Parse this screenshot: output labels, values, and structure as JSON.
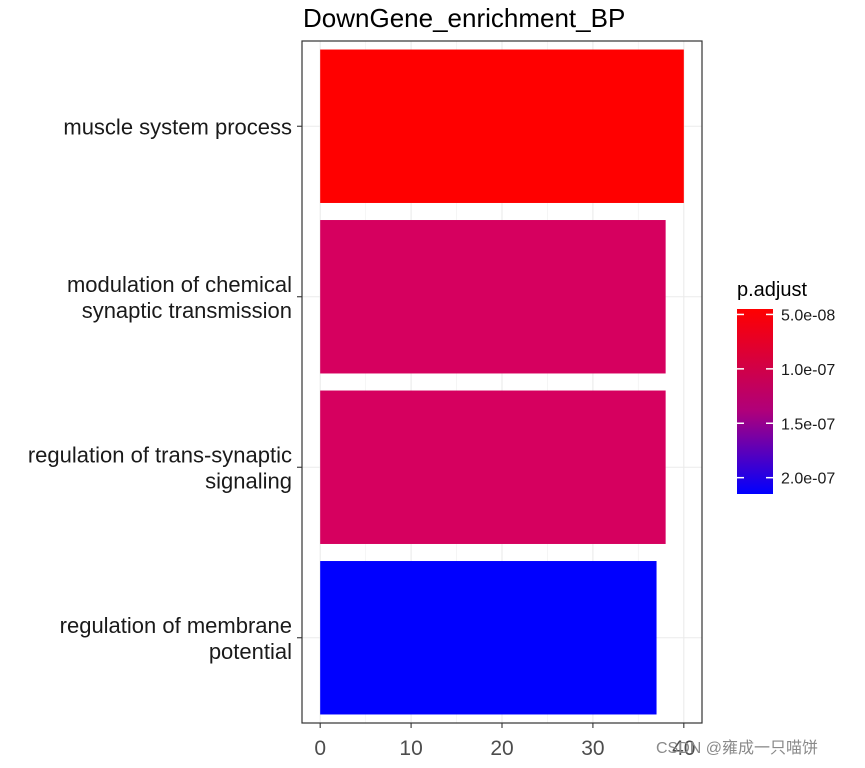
{
  "chart_data": {
    "type": "bar",
    "orientation": "horizontal",
    "title": "DownGene_enrichment_BP",
    "categories": [
      [
        "muscle system process"
      ],
      [
        "modulation of chemical",
        "synaptic transmission"
      ],
      [
        "regulation of trans-synaptic",
        "signaling"
      ],
      [
        "regulation of membrane",
        "potential"
      ]
    ],
    "values": [
      40,
      38,
      38,
      37
    ],
    "p_adjust": [
      5e-08,
      9e-08,
      9e-08,
      2.05e-07
    ],
    "bar_colors": [
      "#FF0000",
      "#D6005F",
      "#D6005F",
      "#0000FF"
    ],
    "xlim": [
      -2,
      42
    ],
    "x_ticks": [
      0,
      10,
      20,
      30,
      40
    ],
    "x_tick_labels": [
      "0",
      "10",
      "20",
      "30",
      "40"
    ],
    "grid": true,
    "legend": {
      "title": "p.adjust",
      "placement": "right",
      "color_high": "#FF0000",
      "color_low": "#0000FF",
      "range": [
        4.5e-08,
        2.15e-07
      ],
      "ticks": [
        5e-08,
        1e-07,
        1.5e-07,
        2e-07
      ],
      "tick_labels": [
        "5.0e-08",
        "1.0e-07",
        "1.5e-07",
        "2.0e-07"
      ]
    }
  },
  "watermark": "CSDN @雍成一只喵饼"
}
